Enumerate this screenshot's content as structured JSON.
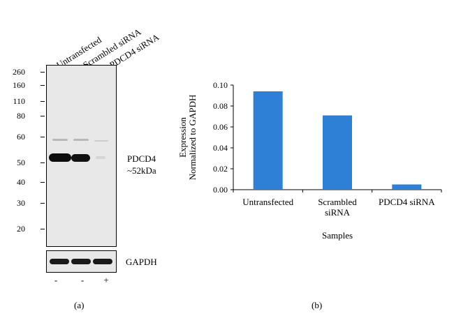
{
  "blot": {
    "lanes": [
      "Untransfected",
      "Scrambled siRNA",
      "PDCD4 siRNA"
    ],
    "markers": [
      "260",
      "160",
      "110",
      "80",
      "60",
      "50",
      "40",
      "30",
      "20"
    ],
    "target_label": "PDCD4",
    "target_size": "~52kDa",
    "loading_label": "GAPDH",
    "sirna_marks": [
      "-",
      "-",
      "+"
    ],
    "panel_label": "(a)"
  },
  "chart_data": {
    "type": "bar",
    "categories": [
      "Untransfected",
      "Scrambled siRNA",
      "PDCD4 siRNA"
    ],
    "values": [
      0.094,
      0.071,
      0.005
    ],
    "ylim": [
      0,
      0.1
    ],
    "yticks": [
      "0.00",
      "0.02",
      "0.04",
      "0.06",
      "0.08",
      "0.10"
    ],
    "ylabel_line1": "Expression",
    "ylabel_line2": "Normalized to GAPDH",
    "xlabel": "Samples",
    "bar_color": "#2e7fd6",
    "panel_label": "(b)"
  }
}
